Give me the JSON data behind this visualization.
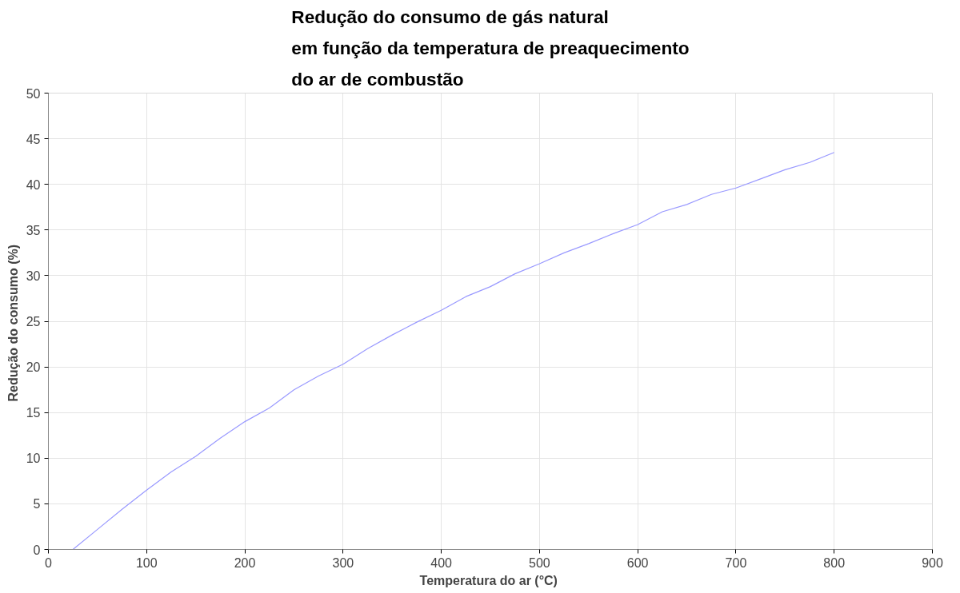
{
  "chart_data": {
    "type": "line",
    "title": "Redução do consumo de gás natural\nem função da temperatura de preaquecimento\ndo ar de combustão",
    "xlabel": "Temperatura do ar  (°C)",
    "ylabel": "Redução do consumo  (%)",
    "x": [
      25,
      50,
      75,
      100,
      125,
      150,
      175,
      200,
      225,
      250,
      275,
      300,
      325,
      350,
      375,
      400,
      425,
      450,
      475,
      500,
      525,
      550,
      575,
      600,
      625,
      650,
      675,
      700,
      725,
      750,
      775,
      800
    ],
    "series": [
      {
        "color": "#9999ff",
        "values": [
          0,
          2.2,
          4.4,
          6.5,
          8.5,
          10.2,
          12.2,
          14,
          15.5,
          17.5,
          19,
          20.3,
          22,
          23.5,
          24.9,
          26.2,
          27.7,
          28.8,
          30.2,
          31.3,
          32.5,
          33.5,
          34.6,
          35.6,
          37,
          37.8,
          38.9,
          39.6,
          40.6,
          41.6,
          42.4,
          43.5
        ]
      }
    ],
    "xlim": [
      0,
      900
    ],
    "xticks": [
      0,
      100,
      200,
      300,
      400,
      500,
      600,
      700,
      800,
      900
    ],
    "ylim": [
      0,
      50
    ],
    "yticks": [
      0,
      5,
      10,
      15,
      20,
      25,
      30,
      35,
      40,
      45,
      50
    ],
    "grid": true,
    "marker": "none",
    "line_style": "solid"
  }
}
